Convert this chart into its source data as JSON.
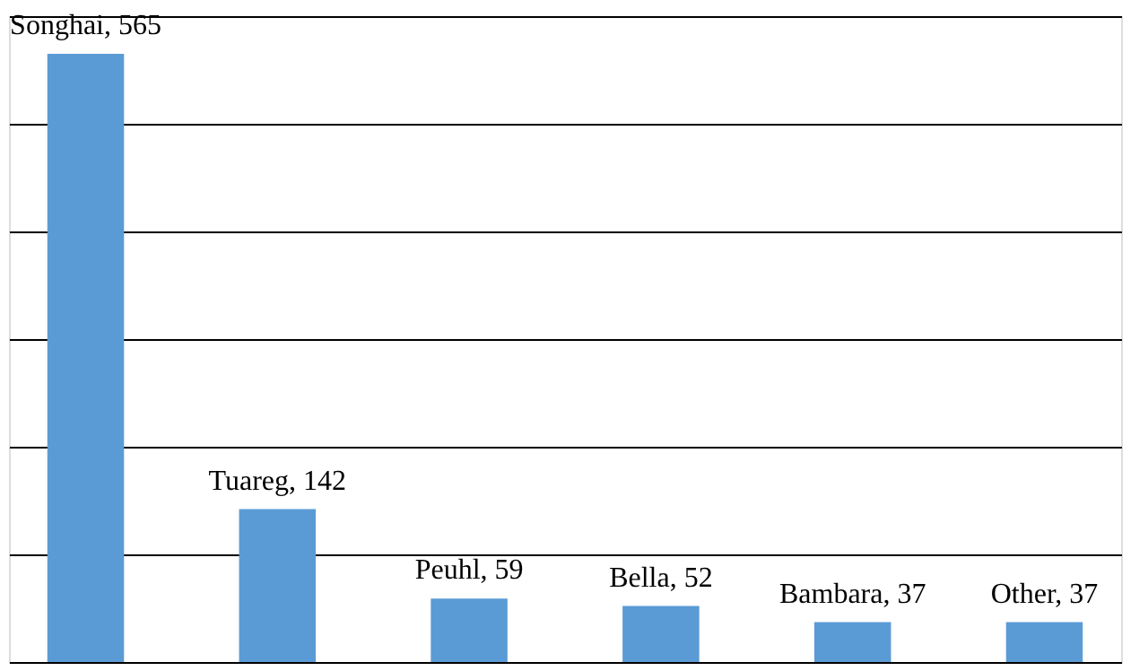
{
  "chart_data": {
    "type": "bar",
    "categories": [
      null,
      null,
      null,
      null,
      null,
      null
    ],
    "values": [
      565,
      142,
      59,
      52,
      37,
      37
    ],
    "color": "#5b9bd5",
    "value_labels": [
      "Songhai, 565",
      "Tuareg, 142",
      "Peuhl, 59",
      "Bella, 52",
      "Bambara, 37",
      "Other, 37"
    ],
    "ylim": [
      0,
      600
    ],
    "yticks": [
      0,
      100,
      200,
      300,
      400,
      500,
      600
    ],
    "grid": "y",
    "tick_labels": false
  }
}
